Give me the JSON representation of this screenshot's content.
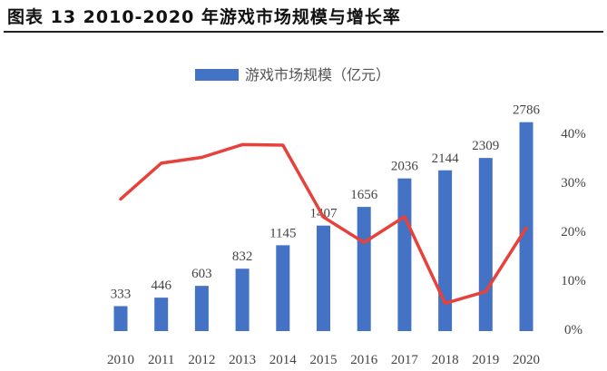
{
  "figure_title": "图表 13 2010-2020 年游戏市场规模与增长率",
  "chart_data": {
    "type": "bar",
    "title": "图表 13 2010-2020 年游戏市场规模与增长率",
    "categories": [
      "2010",
      "2011",
      "2012",
      "2013",
      "2014",
      "2015",
      "2016",
      "2017",
      "2018",
      "2019",
      "2020"
    ],
    "series": [
      {
        "name": "游戏市场规模（亿元）",
        "type": "bar",
        "axis": "left",
        "color": "#4472C4",
        "values": [
          333,
          446,
          603,
          832,
          1145,
          1407,
          1656,
          2036,
          2144,
          2309,
          2786
        ],
        "data_labels": [
          "333",
          "446",
          "603",
          "832",
          "1145",
          "1407",
          "1656",
          "2036",
          "2144",
          "2309",
          "2786"
        ]
      },
      {
        "type": "line",
        "axis": "right",
        "color": "#E8413B",
        "values": [
          26.6,
          33.9,
          35.1,
          37.7,
          37.6,
          22.9,
          17.7,
          23.0,
          5.3,
          7.7,
          20.7
        ]
      }
    ],
    "y_left_range": [
      0,
      3000
    ],
    "y_right": {
      "range": [
        0,
        40
      ],
      "ticks": [
        0,
        10,
        20,
        30,
        40
      ],
      "tick_labels": [
        "0%",
        "10%",
        "20%",
        "30%",
        "40%"
      ]
    },
    "legend": {
      "placement": "top-center",
      "entries": [
        "游戏市场规模（亿元）"
      ]
    },
    "grid": false
  }
}
